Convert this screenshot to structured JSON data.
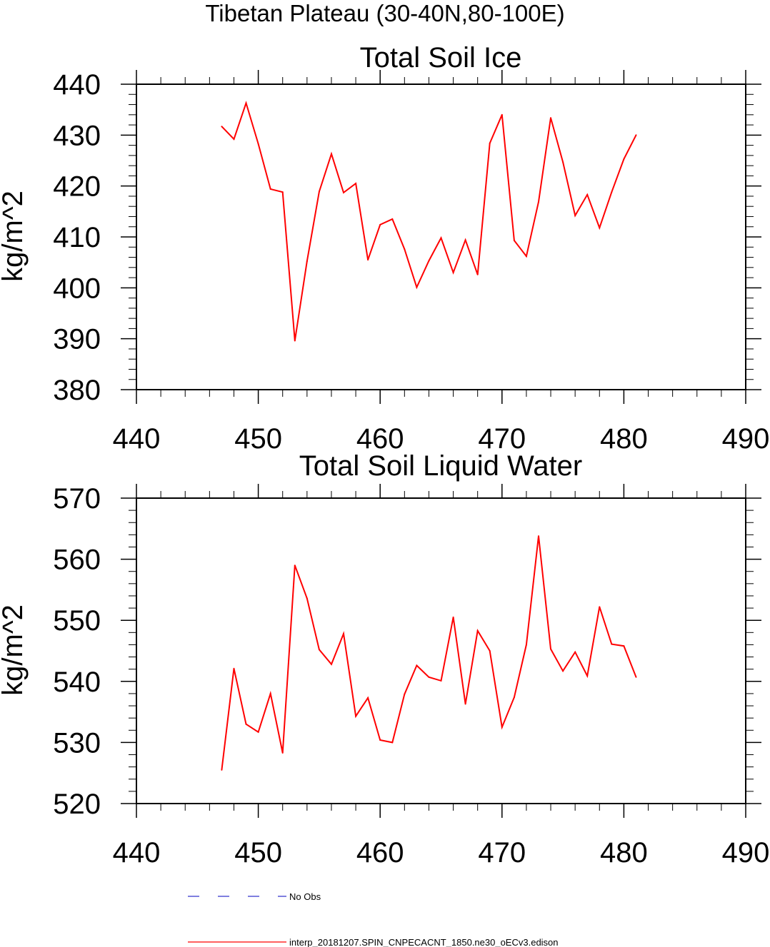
{
  "figure": {
    "title": "Tibetan Plateau (30-40N,80-100E)"
  },
  "colors": {
    "model_line": "#ff0000",
    "obs_line": "#3333cc",
    "axis": "#000000"
  },
  "chart_data": [
    {
      "type": "line",
      "title": "Total Soil Ice",
      "xlabel": "",
      "ylabel": "kg/m^2",
      "xlim": [
        440,
        490
      ],
      "ylim": [
        380,
        440
      ],
      "xticks": [
        440,
        450,
        460,
        470,
        480,
        490
      ],
      "yticks": [
        380,
        390,
        400,
        410,
        420,
        430,
        440
      ],
      "yminor_step": 2,
      "xminor_step": 2,
      "series": [
        {
          "name": "interp_20181207.SPIN_CNPECACNT_1850.ne30_oECv3.edison",
          "x": [
            447,
            448,
            449,
            450,
            451,
            452,
            453,
            454,
            455,
            456,
            457,
            458,
            459,
            460,
            461,
            462,
            463,
            464,
            465,
            466,
            467,
            468,
            469,
            470,
            471,
            472,
            473,
            474,
            475,
            476,
            477,
            478,
            479,
            480,
            481
          ],
          "values": [
            431.7,
            429.2,
            436.3,
            428.3,
            419.4,
            418.8,
            389.6,
            405.2,
            418.9,
            426.3,
            418.7,
            420.5,
            405.5,
            412.4,
            413.5,
            407.6,
            400.1,
            405.3,
            409.8,
            403.0,
            409.4,
            402.6,
            428.4,
            434.0,
            409.3,
            406.2,
            416.9,
            433.4,
            424.7,
            414.2,
            418.3,
            411.8,
            418.8,
            425.3,
            430.0
          ]
        }
      ]
    },
    {
      "type": "line",
      "title": "Total Soil Liquid Water",
      "xlabel": "",
      "ylabel": "kg/m^2",
      "xlim": [
        440,
        490
      ],
      "ylim": [
        520,
        570
      ],
      "xticks": [
        440,
        450,
        460,
        470,
        480,
        490
      ],
      "yticks": [
        520,
        530,
        540,
        550,
        560,
        570
      ],
      "yminor_step": 2,
      "xminor_step": 2,
      "series": [
        {
          "name": "interp_20181207.SPIN_CNPECACNT_1850.ne30_oECv3.edison",
          "x": [
            447,
            448,
            449,
            450,
            451,
            452,
            453,
            454,
            455,
            456,
            457,
            458,
            459,
            460,
            461,
            462,
            463,
            464,
            465,
            466,
            467,
            468,
            469,
            470,
            471,
            472,
            473,
            474,
            475,
            476,
            477,
            478,
            479,
            480,
            481
          ],
          "values": [
            525.5,
            542.1,
            533.0,
            531.7,
            538.0,
            528.3,
            559.0,
            553.6,
            545.2,
            542.8,
            547.8,
            534.3,
            537.3,
            530.4,
            530.0,
            537.9,
            542.6,
            540.7,
            540.1,
            550.5,
            536.3,
            548.3,
            545.0,
            532.5,
            537.4,
            546.0,
            563.8,
            545.3,
            541.7,
            544.8,
            540.9,
            552.2,
            546.1,
            545.8,
            540.7
          ]
        }
      ]
    }
  ],
  "legend": {
    "placement": "bottom",
    "items": [
      {
        "label": "No Obs",
        "style": "dashed",
        "color": "#3333cc"
      },
      {
        "label": "interp_20181207.SPIN_CNPECACNT_1850.ne30_oECv3.edison",
        "style": "solid",
        "color": "#ff0000"
      }
    ]
  }
}
